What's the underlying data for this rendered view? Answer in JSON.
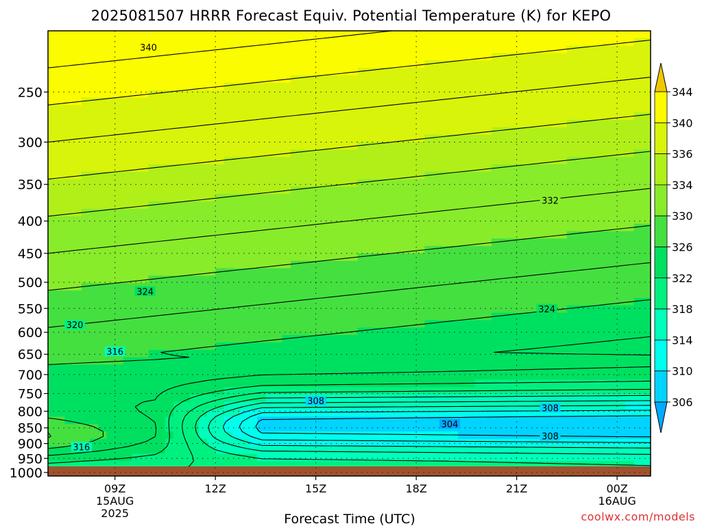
{
  "chart_data": {
    "type": "heatmap",
    "title": "2025081507 HRRR Forecast Equiv. Potential Temperature (K) for KEPO",
    "xlabel": "Forecast Time (UTC)",
    "ylabel": "",
    "x_ticks": [
      {
        "label": "09Z",
        "sub": [
          "15AUG",
          "2025"
        ],
        "hour": 9
      },
      {
        "label": "12Z",
        "sub": [],
        "hour": 12
      },
      {
        "label": "15Z",
        "sub": [],
        "hour": 15
      },
      {
        "label": "18Z",
        "sub": [],
        "hour": 18
      },
      {
        "label": "21Z",
        "sub": [],
        "hour": 21
      },
      {
        "label": "00Z",
        "sub": [
          "16AUG"
        ],
        "hour": 24
      }
    ],
    "xlim": [
      7.0,
      25.0
    ],
    "y_ticks": [
      250,
      300,
      350,
      400,
      450,
      500,
      550,
      600,
      650,
      700,
      750,
      800,
      850,
      900,
      950,
      1000
    ],
    "ylim_hPa": [
      200,
      1013
    ],
    "y_scale": "log",
    "colorbar": {
      "levels": [
        306,
        310,
        314,
        318,
        322,
        326,
        330,
        334,
        336,
        340,
        344
      ],
      "colors": [
        "#00aaff",
        "#00d4ff",
        "#00ffee",
        "#00ffbb",
        "#00f080",
        "#00e060",
        "#44e040",
        "#88ec2a",
        "#b0f018",
        "#d8f40a",
        "#fcfc00",
        "#f0c800"
      ],
      "extend": "both"
    },
    "ground_color": "#a0522d",
    "contour_labels": [
      {
        "text": "340",
        "x": 10.0,
        "p": 213
      },
      {
        "text": "332",
        "x": 22.0,
        "p": 372
      },
      {
        "text": "324",
        "x": 9.9,
        "p": 518
      },
      {
        "text": "324",
        "x": 21.9,
        "p": 552
      },
      {
        "text": "320",
        "x": 7.8,
        "p": 585
      },
      {
        "text": "316",
        "x": 9.0,
        "p": 645
      },
      {
        "text": "308",
        "x": 15.0,
        "p": 772
      },
      {
        "text": "308",
        "x": 22.0,
        "p": 792
      },
      {
        "text": "304",
        "x": 19.0,
        "p": 840
      },
      {
        "text": "308",
        "x": 22.0,
        "p": 878
      },
      {
        "text": "316",
        "x": 8.0,
        "p": 913
      }
    ]
  },
  "watermark": "coolwx.com/models"
}
